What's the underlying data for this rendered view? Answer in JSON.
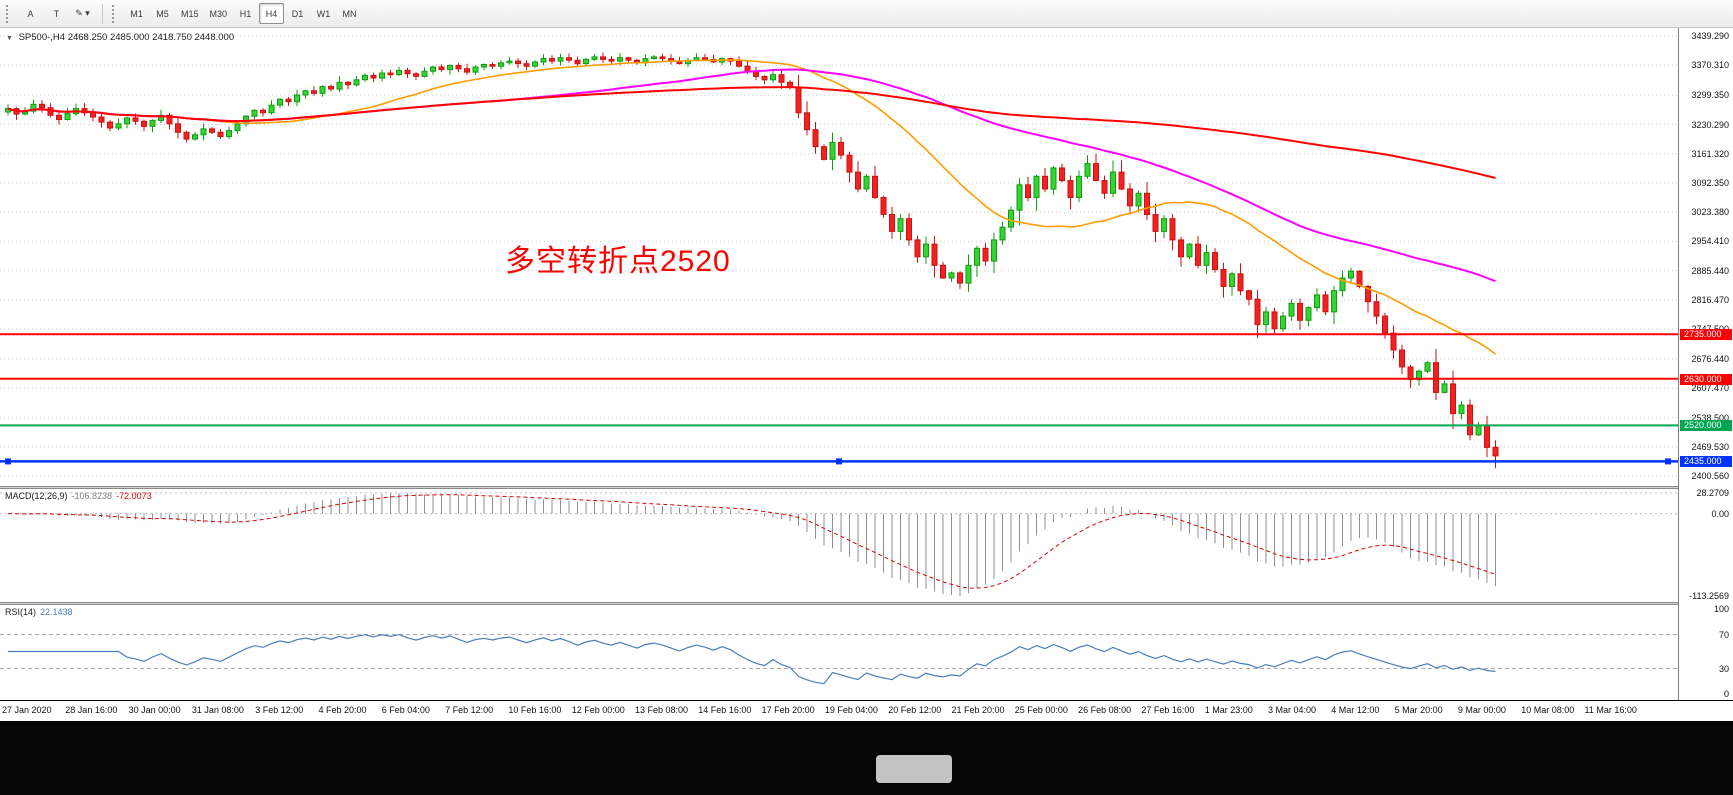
{
  "toolbar": {
    "tools": [
      {
        "id": "text-tool",
        "glyph": "A"
      },
      {
        "id": "label-tool",
        "glyph": "T"
      },
      {
        "id": "draw-tool",
        "glyph": "✎",
        "has_dropdown": true
      }
    ],
    "dropdown_caret": "▾",
    "timeframes": [
      "M1",
      "M5",
      "M15",
      "M30",
      "H1",
      "H4",
      "D1",
      "W1",
      "MN"
    ],
    "active_timeframe": "H4"
  },
  "chart": {
    "title_marker": "▼",
    "symbol_timeframe": "SP500-,H4",
    "ohlc_text": "2468.250 2485.000 2418.750 2448.000",
    "annotation": {
      "text": "多空转折点2520",
      "color": "#ff0000"
    },
    "price_axis": {
      "max": 3439.29,
      "min": 2400.56,
      "labels": [
        "3439.290",
        "3370.310",
        "3299.350",
        "3230.290",
        "3161.320",
        "3092.350",
        "3023.380",
        "2954.410",
        "2885.440",
        "2816.470",
        "2747.500",
        "2676.440",
        "2607.470",
        "2538.500",
        "2469.530",
        "2400.560"
      ]
    },
    "levels": [
      {
        "price": 2735,
        "label": "2735.000",
        "color": "#ff0000",
        "selected": false
      },
      {
        "price": 2630,
        "label": "2630.000",
        "color": "#ff0000",
        "selected": false
      },
      {
        "price": 2520,
        "label": "2520.000",
        "color": "#00a651",
        "selected": false
      },
      {
        "price": 2435,
        "label": "2435.000",
        "color": "#0033ff",
        "selected": true
      }
    ],
    "moving_averages": [
      {
        "period": 24,
        "color": "#ff9d00",
        "width": 1.6
      },
      {
        "period": 60,
        "color": "#ff00ff",
        "width": 2
      },
      {
        "period": 150,
        "color": "#ff0000",
        "width": 2
      }
    ],
    "time_axis": [
      "27 Jan 2020",
      "28 Jan 16:00",
      "30 Jan 00:00",
      "31 Jan 08:00",
      "3 Feb 12:00",
      "4 Feb 20:00",
      "6 Feb 04:00",
      "7 Feb 12:00",
      "10 Feb 16:00",
      "12 Feb 00:00",
      "13 Feb 08:00",
      "14 Feb 16:00",
      "17 Feb 20:00",
      "19 Feb 04:00",
      "20 Feb 12:00",
      "21 Feb 20:00",
      "25 Feb 00:00",
      "26 Feb 08:00",
      "27 Feb 16:00",
      "1 Mar 23:00",
      "3 Mar 04:00",
      "4 Mar 12:00",
      "5 Mar 20:00",
      "9 Mar 00:00",
      "10 Mar 08:00",
      "11 Mar 16:00"
    ]
  },
  "indicators": {
    "macd": {
      "name": "MACD(12,26,9)",
      "value": "-106.8238",
      "signal_value": "-72.0073",
      "axis_labels": [
        "28.2709",
        "0.00",
        "-113.2569"
      ],
      "max": 28.2709,
      "min": -113.2569,
      "histogram_color": "#8f8f8f",
      "signal_color": "#e00000"
    },
    "rsi": {
      "name": "RSI(14)",
      "value": "22.1438",
      "axis_labels": [
        "100",
        "70",
        "30",
        "0"
      ],
      "levels": [
        70,
        30
      ],
      "line_color": "#4a7ebb"
    }
  },
  "chart_data": {
    "type": "candlestick",
    "symbol": "SP500-",
    "timeframe": "H4",
    "y_range": [
      2400.56,
      3439.29
    ],
    "last_ohlc": {
      "open": 2468.25,
      "high": 2485.0,
      "low": 2418.75,
      "close": 2448.0
    },
    "closes": [
      3268,
      3255,
      3262,
      3278,
      3270,
      3252,
      3242,
      3256,
      3268,
      3258,
      3248,
      3236,
      3222,
      3232,
      3246,
      3238,
      3226,
      3240,
      3252,
      3232,
      3212,
      3196,
      3206,
      3220,
      3212,
      3202,
      3216,
      3232,
      3250,
      3264,
      3258,
      3276,
      3290,
      3284,
      3300,
      3310,
      3304,
      3320,
      3314,
      3330,
      3324,
      3336,
      3346,
      3340,
      3352,
      3348,
      3358,
      3350,
      3344,
      3356,
      3366,
      3360,
      3370,
      3362,
      3354,
      3366,
      3372,
      3368,
      3376,
      3380,
      3374,
      3368,
      3378,
      3386,
      3380,
      3388,
      3382,
      3374,
      3384,
      3390,
      3384,
      3380,
      3388,
      3382,
      3376,
      3386,
      3390,
      3386,
      3380,
      3374,
      3382,
      3388,
      3384,
      3378,
      3386,
      3380,
      3368,
      3356,
      3344,
      3336,
      3348,
      3330,
      3318,
      3258,
      3218,
      3178,
      3148,
      3188,
      3158,
      3118,
      3078,
      3108,
      3058,
      3018,
      2978,
      3008,
      2958,
      2918,
      2948,
      2898,
      2868,
      2880,
      2856,
      2898,
      2938,
      2908,
      2958,
      2988,
      3028,
      3088,
      3058,
      3108,
      3078,
      3128,
      3098,
      3058,
      3108,
      3138,
      3098,
      3068,
      3118,
      3078,
      3038,
      3068,
      3018,
      2978,
      3008,
      2958,
      2918,
      2948,
      2898,
      2928,
      2888,
      2848,
      2878,
      2838,
      2818,
      2758,
      2788,
      2748,
      2778,
      2808,
      2768,
      2798,
      2828,
      2788,
      2838,
      2868,
      2884,
      2848,
      2812,
      2778,
      2738,
      2698,
      2658,
      2628,
      2648,
      2668,
      2598,
      2618,
      2548,
      2568,
      2498,
      2518,
      2468.25,
      2448
    ]
  }
}
